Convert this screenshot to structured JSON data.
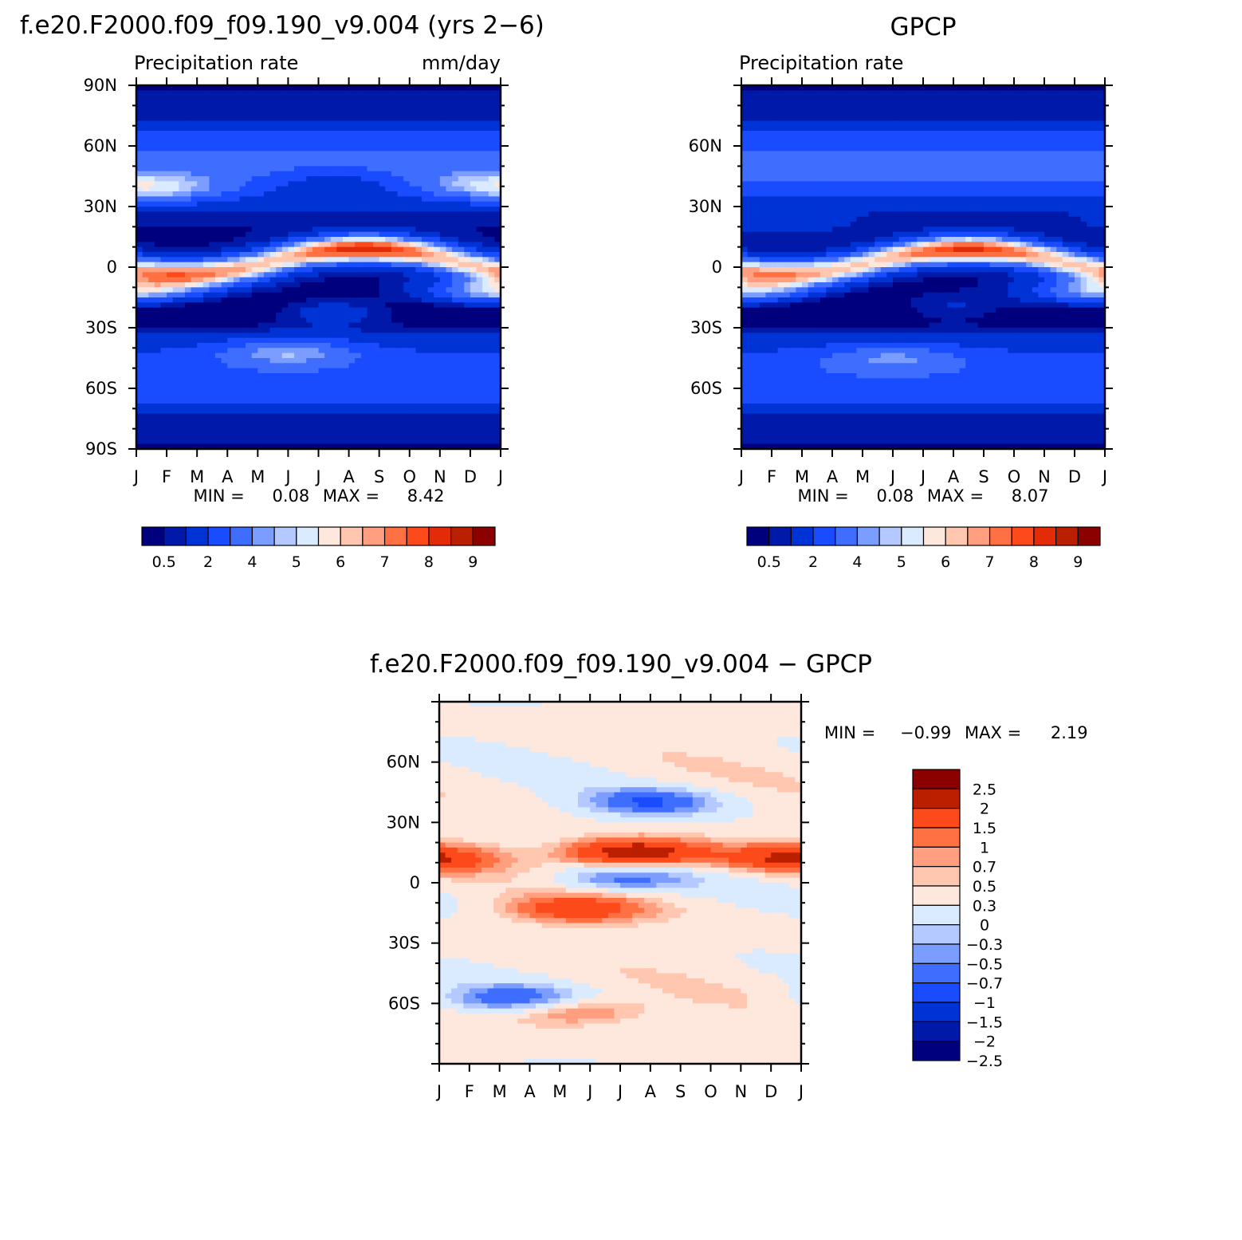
{
  "figure": {
    "title_left": "f.e20.F2000.f09_f09.190_v9.004 (yrs 2−6)",
    "title_right": "GPCP",
    "title_diff": "f.e20.F2000.f09_f09.190_v9.004 − GPCP"
  },
  "colors": {
    "precip": [
      "#00007f",
      "#0019a8",
      "#0033d6",
      "#1a4cff",
      "#3f6eff",
      "#7b9dff",
      "#b3c9ff",
      "#daeaff",
      "#fee8dd",
      "#ffc7b0",
      "#ff9f7f",
      "#ff7043",
      "#fd4a1b",
      "#e32b07",
      "#ba2000",
      "#8b0000"
    ],
    "diff": [
      "#00007f",
      "#0019a8",
      "#0033d6",
      "#1a4cff",
      "#3f6eff",
      "#7b9dff",
      "#b3c9ff",
      "#daeaff",
      "#fee8dd",
      "#ffc7b0",
      "#ff9f7f",
      "#ff7043",
      "#fd4a1b",
      "#ba2000",
      "#8b0000"
    ]
  },
  "chart_data": [
    {
      "type": "heatmap",
      "name": "model",
      "left_label": "Precipitation rate",
      "right_label": "mm/day",
      "x_ticks": [
        "J",
        "F",
        "M",
        "A",
        "M",
        "J",
        "J",
        "A",
        "S",
        "O",
        "N",
        "D",
        "J"
      ],
      "y_ticks": [
        "90N",
        "60N",
        "30N",
        "0",
        "30S",
        "60S",
        "90S"
      ],
      "ylim": [
        -90,
        90
      ],
      "stats": {
        "min_label": "MIN =",
        "min": "0.08",
        "max_label": "MAX =",
        "max": "8.42"
      },
      "colorbar": {
        "orientation": "horizontal",
        "labels": [
          "0.5",
          "2",
          "4",
          "5",
          "6",
          "7",
          "8",
          "9"
        ]
      },
      "features": [
        {
          "lat": 9,
          "month": 7.5,
          "value": 8.4
        },
        {
          "lat": -5,
          "month": 2.5,
          "value": 6.3
        },
        {
          "lat": -12,
          "month": 11.8,
          "value": 5.2
        },
        {
          "lat": -42,
          "month": 5.0,
          "value": 4.5
        },
        {
          "lat": 38,
          "month": 0.9,
          "value": 4.2
        },
        {
          "lat": 40,
          "month": 11.5,
          "value": 4.2
        },
        {
          "lat": -22,
          "month": 6.5,
          "value": 1.4
        },
        {
          "lat": 42,
          "month": 6.5,
          "value": 1.5
        }
      ]
    },
    {
      "type": "heatmap",
      "name": "gpcp",
      "left_label": "Precipitation rate",
      "right_label": "",
      "x_ticks": [
        "J",
        "F",
        "M",
        "A",
        "M",
        "J",
        "J",
        "A",
        "S",
        "O",
        "N",
        "D",
        "J"
      ],
      "y_ticks": [
        "60N",
        "30N",
        "0",
        "30S",
        "60S"
      ],
      "ylim": [
        -90,
        90
      ],
      "stats": {
        "min_label": "MIN =",
        "min": "0.08",
        "max_label": "MAX =",
        "max": "8.07"
      },
      "colorbar": {
        "orientation": "horizontal",
        "labels": [
          "0.5",
          "2",
          "4",
          "5",
          "6",
          "7",
          "8",
          "9"
        ]
      },
      "features": [
        {
          "lat": 8,
          "month": 7.5,
          "value": 8.0
        },
        {
          "lat": -5,
          "month": 2.0,
          "value": 6.0
        },
        {
          "lat": -12,
          "month": 11.8,
          "value": 5.0
        },
        {
          "lat": -45,
          "month": 5.0,
          "value": 4.2
        },
        {
          "lat": -20,
          "month": 7.0,
          "value": 1.0
        },
        {
          "lat": 22,
          "month": 1.5,
          "value": 1.6
        }
      ]
    },
    {
      "type": "heatmap",
      "name": "difference",
      "left_label": "",
      "right_label": "",
      "x_ticks": [
        "J",
        "F",
        "M",
        "A",
        "M",
        "J",
        "J",
        "A",
        "S",
        "O",
        "N",
        "D",
        "J"
      ],
      "y_ticks": [
        "60N",
        "30N",
        "0",
        "30S",
        "60S"
      ],
      "ylim": [
        -90,
        90
      ],
      "stats": {
        "min_label": "MIN =",
        "min": "−0.99",
        "max_label": "MAX =",
        "max": "2.19"
      },
      "colorbar": {
        "orientation": "vertical",
        "labels": [
          "2.5",
          "2",
          "1.5",
          "1",
          "0.7",
          "0.5",
          "0.3",
          "0",
          "−0.3",
          "−0.5",
          "−0.7",
          "−1",
          "−1.5",
          "−2",
          "−2.5"
        ]
      },
      "features": [
        {
          "lat": 15,
          "month": 6.5,
          "value": 2.1
        },
        {
          "lat": 12,
          "month": 11.5,
          "value": 1.5
        },
        {
          "lat": -13,
          "month": 4.5,
          "value": 1.3
        },
        {
          "lat": -64,
          "month": 4.5,
          "value": 1.0
        },
        {
          "lat": 40,
          "month": 7.0,
          "value": -0.9
        },
        {
          "lat": 2,
          "month": 6.0,
          "value": -0.8
        },
        {
          "lat": -58,
          "month": 2.5,
          "value": -0.9
        }
      ]
    }
  ]
}
